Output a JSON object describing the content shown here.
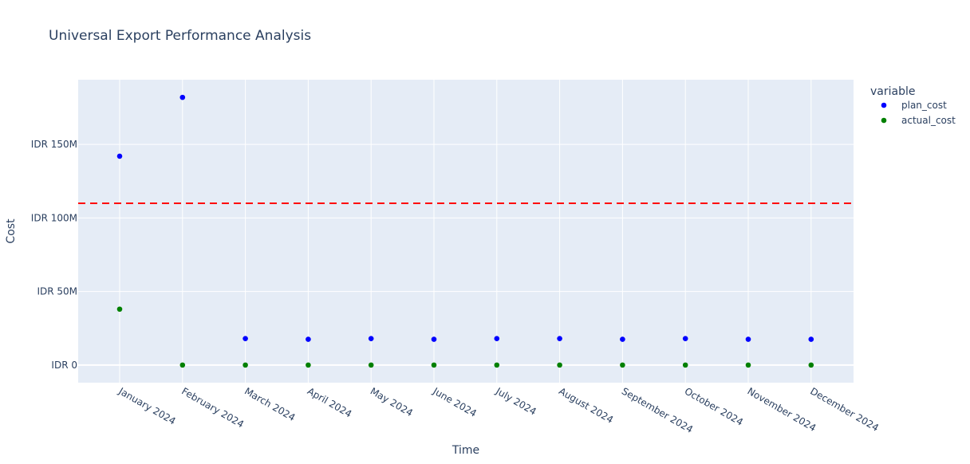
{
  "chart_data": {
    "type": "scatter",
    "title": "Universal Export Performance Analysis",
    "xlabel": "Time",
    "ylabel": "Cost",
    "x": [
      "January 2024",
      "February 2024",
      "March 2024",
      "April 2024",
      "May 2024",
      "June 2024",
      "July 2024",
      "August 2024",
      "September 2024",
      "October 2024",
      "November 2024",
      "December 2024"
    ],
    "yticks": [
      {
        "value": 0,
        "label": "IDR 0"
      },
      {
        "value": 50000000,
        "label": "IDR 50M"
      },
      {
        "value": 100000000,
        "label": "IDR 100M"
      },
      {
        "value": 150000000,
        "label": "IDR 150M"
      }
    ],
    "ylim": [
      -12000000,
      194000000
    ],
    "legend_title": "variable",
    "legend_position": "top-right",
    "grid": true,
    "reference_line": {
      "y": 110000000,
      "color": "#ff0000",
      "style": "dashed"
    },
    "series": [
      {
        "name": "plan_cost",
        "color": "#0000ff",
        "values": [
          142000000,
          182000000,
          18000000,
          17500000,
          18000000,
          17500000,
          18000000,
          18000000,
          17500000,
          18000000,
          17500000,
          17500000
        ]
      },
      {
        "name": "actual_cost",
        "color": "#008000",
        "values": [
          38000000,
          0,
          0,
          0,
          0,
          0,
          0,
          0,
          0,
          0,
          0,
          0
        ]
      }
    ]
  }
}
